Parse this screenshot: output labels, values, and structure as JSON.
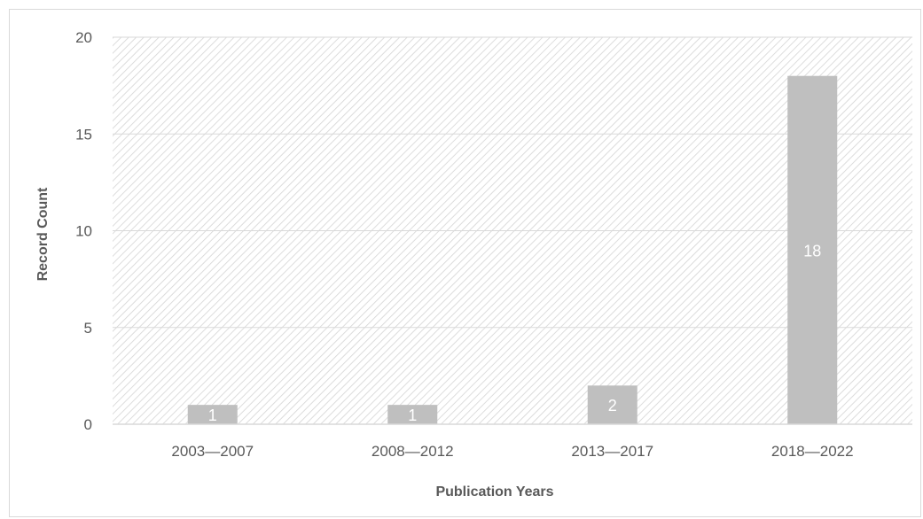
{
  "chart_data": {
    "type": "bar",
    "categories": [
      "2003—2007",
      "2008—2012",
      "2013—2017",
      "2018—2022"
    ],
    "values": [
      1,
      1,
      2,
      18
    ],
    "data_labels": [
      "1",
      "1",
      "2",
      "18"
    ],
    "title": "",
    "xlabel": "Publication Years",
    "ylabel": "Record Count",
    "ylim": [
      0,
      20
    ],
    "yticks": [
      0,
      5,
      10,
      15,
      20
    ],
    "ytick_labels": [
      "0",
      "5",
      "10",
      "15",
      "20"
    ],
    "grid": true,
    "legend": "none",
    "bar_color": "#bfbfbf",
    "plot_background": "hatched",
    "hatch_color": "#d9d9d9",
    "axis_color": "#d9d9d9",
    "text_color": "#595959"
  }
}
